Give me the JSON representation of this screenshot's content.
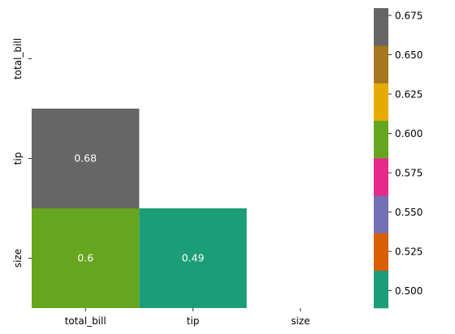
{
  "chart_data": {
    "type": "heatmap",
    "title": "",
    "xlabel": "",
    "ylabel": "",
    "x_categories": [
      "total_bill",
      "tip",
      "size"
    ],
    "y_categories": [
      "total_bill",
      "tip",
      "size"
    ],
    "mask": "upper-triangle-including-diagonal",
    "cells": [
      {
        "row": "tip",
        "col": "total_bill",
        "value": 0.68,
        "label": "0.68",
        "color": "#666666"
      },
      {
        "row": "size",
        "col": "total_bill",
        "value": 0.6,
        "label": "0.6",
        "color": "#66a61e"
      },
      {
        "row": "size",
        "col": "tip",
        "value": 0.49,
        "label": "0.49",
        "color": "#1b9e77"
      }
    ],
    "colorbar": {
      "palette": "Dark2",
      "vmin": 0.489,
      "vmax": 0.6796,
      "colors": [
        "#1b9e77",
        "#d95f02",
        "#7570b3",
        "#e7298a",
        "#66a61e",
        "#e6ab02",
        "#a6761d",
        "#666666"
      ],
      "ticks": [
        0.5,
        0.525,
        0.55,
        0.575,
        0.6,
        0.625,
        0.65,
        0.675
      ],
      "tick_labels": [
        "0.500",
        "0.525",
        "0.550",
        "0.575",
        "0.600",
        "0.625",
        "0.650",
        "0.675"
      ]
    },
    "grid": false,
    "legend": "colorbar-right"
  }
}
